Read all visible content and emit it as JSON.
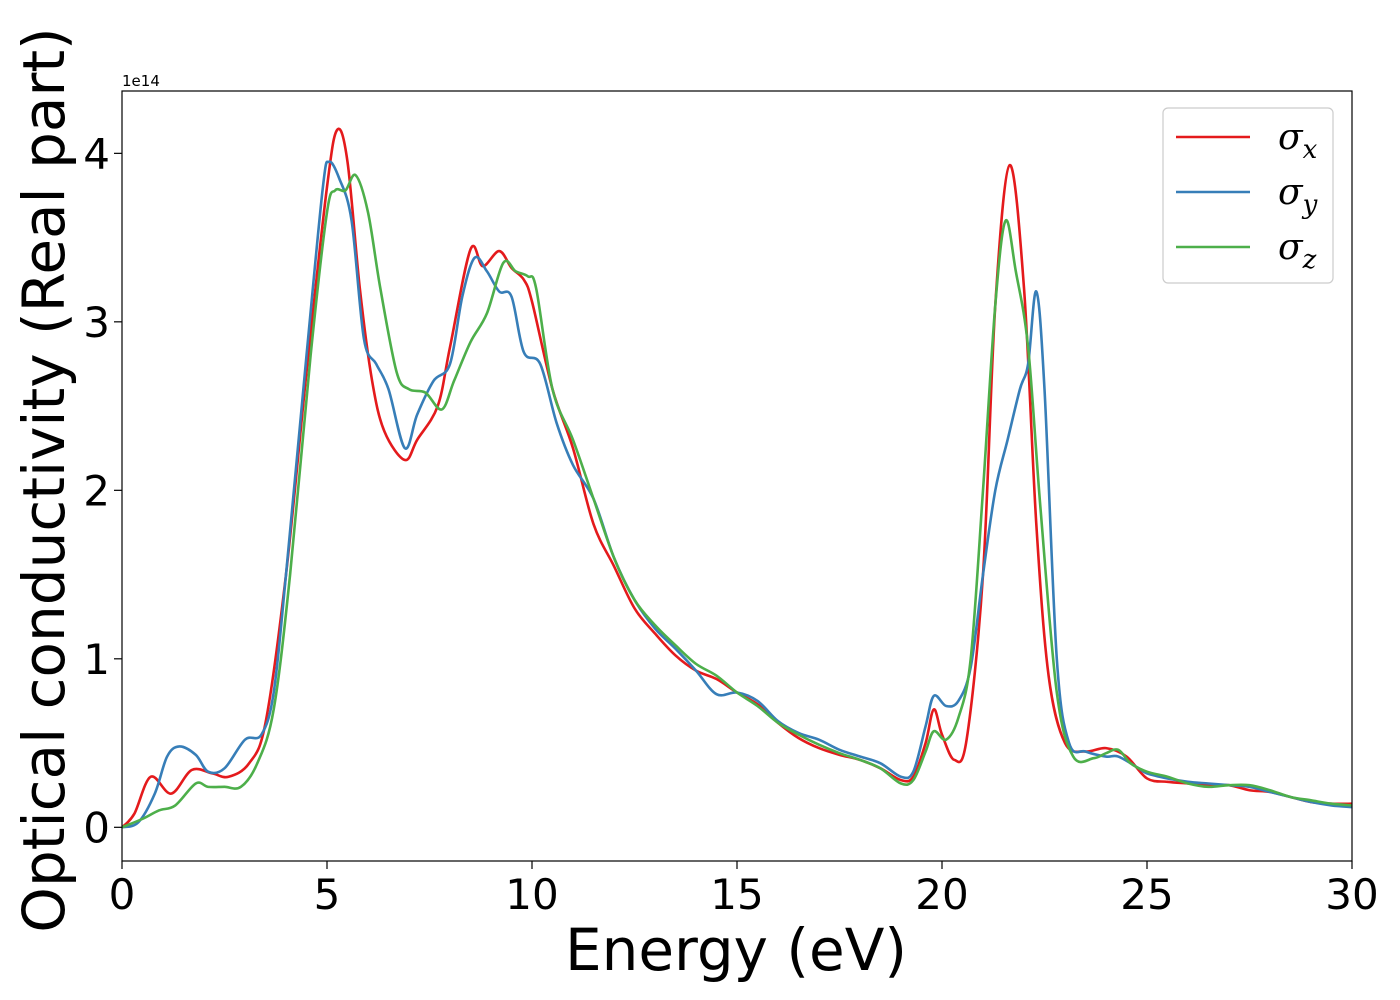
{
  "chart_data": {
    "type": "line",
    "xlabel": "Energy (eV)",
    "ylabel": "Optical conductivity (Real part)",
    "offset_text": "1e14",
    "xlim": [
      0,
      30
    ],
    "ylim": [
      -0.2,
      4.37
    ],
    "x_ticks": [
      0,
      5,
      10,
      15,
      20,
      25,
      30
    ],
    "x_tick_labels": [
      "0",
      "5",
      "10",
      "15",
      "20",
      "25",
      "30"
    ],
    "y_ticks": [
      0,
      1,
      2,
      3,
      4
    ],
    "y_tick_labels": [
      "0",
      "1",
      "2",
      "3",
      "4"
    ],
    "grid": false,
    "legend_position": "top-right",
    "series": [
      {
        "name": "σx",
        "symbol": "σ",
        "subscript": "x",
        "color": "#e41a1c",
        "points": [
          [
            0,
            0
          ],
          [
            0.3,
            0.08
          ],
          [
            0.7,
            0.3
          ],
          [
            1.2,
            0.2
          ],
          [
            1.7,
            0.34
          ],
          [
            2.2,
            0.32
          ],
          [
            2.6,
            0.3
          ],
          [
            3.1,
            0.38
          ],
          [
            3.5,
            0.62
          ],
          [
            4.0,
            1.5
          ],
          [
            4.5,
            2.7
          ],
          [
            5.0,
            3.8
          ],
          [
            5.25,
            4.14
          ],
          [
            5.5,
            3.95
          ],
          [
            5.8,
            3.2
          ],
          [
            6.1,
            2.65
          ],
          [
            6.4,
            2.35
          ],
          [
            6.9,
            2.18
          ],
          [
            7.2,
            2.3
          ],
          [
            7.7,
            2.5
          ],
          [
            8.0,
            2.85
          ],
          [
            8.5,
            3.43
          ],
          [
            8.8,
            3.33
          ],
          [
            9.2,
            3.42
          ],
          [
            9.5,
            3.32
          ],
          [
            9.8,
            3.25
          ],
          [
            10.0,
            3.12
          ],
          [
            10.5,
            2.6
          ],
          [
            11.0,
            2.25
          ],
          [
            11.5,
            1.8
          ],
          [
            12.0,
            1.55
          ],
          [
            12.5,
            1.3
          ],
          [
            13.0,
            1.15
          ],
          [
            13.5,
            1.02
          ],
          [
            14.0,
            0.93
          ],
          [
            14.5,
            0.88
          ],
          [
            15.0,
            0.8
          ],
          [
            15.5,
            0.73
          ],
          [
            16.0,
            0.62
          ],
          [
            16.5,
            0.53
          ],
          [
            17.0,
            0.47
          ],
          [
            17.5,
            0.43
          ],
          [
            18.0,
            0.4
          ],
          [
            18.5,
            0.35
          ],
          [
            19.0,
            0.28
          ],
          [
            19.3,
            0.3
          ],
          [
            19.6,
            0.5
          ],
          [
            19.8,
            0.7
          ],
          [
            20.0,
            0.55
          ],
          [
            20.3,
            0.4
          ],
          [
            20.6,
            0.52
          ],
          [
            21.0,
            1.5
          ],
          [
            21.3,
            3.1
          ],
          [
            21.65,
            3.93
          ],
          [
            22.0,
            3.2
          ],
          [
            22.3,
            1.8
          ],
          [
            22.6,
            0.9
          ],
          [
            23.0,
            0.5
          ],
          [
            23.5,
            0.45
          ],
          [
            24.0,
            0.47
          ],
          [
            24.5,
            0.42
          ],
          [
            25.0,
            0.29
          ],
          [
            25.5,
            0.27
          ],
          [
            26.0,
            0.26
          ],
          [
            26.5,
            0.25
          ],
          [
            27.0,
            0.25
          ],
          [
            27.5,
            0.22
          ],
          [
            28.0,
            0.21
          ],
          [
            28.5,
            0.18
          ],
          [
            29.0,
            0.15
          ],
          [
            29.5,
            0.14
          ],
          [
            30.0,
            0.14
          ]
        ]
      },
      {
        "name": "σy",
        "symbol": "σ",
        "subscript": "y",
        "color": "#377eb8",
        "points": [
          [
            0,
            0
          ],
          [
            0.4,
            0.03
          ],
          [
            0.8,
            0.2
          ],
          [
            1.1,
            0.42
          ],
          [
            1.4,
            0.48
          ],
          [
            1.8,
            0.43
          ],
          [
            2.1,
            0.33
          ],
          [
            2.5,
            0.35
          ],
          [
            3.0,
            0.52
          ],
          [
            3.4,
            0.55
          ],
          [
            3.7,
            0.8
          ],
          [
            4.0,
            1.5
          ],
          [
            4.5,
            2.8
          ],
          [
            4.9,
            3.8
          ],
          [
            5.05,
            3.95
          ],
          [
            5.3,
            3.85
          ],
          [
            5.6,
            3.6
          ],
          [
            5.9,
            2.9
          ],
          [
            6.2,
            2.75
          ],
          [
            6.5,
            2.6
          ],
          [
            6.9,
            2.25
          ],
          [
            7.2,
            2.45
          ],
          [
            7.6,
            2.65
          ],
          [
            8.0,
            2.75
          ],
          [
            8.3,
            3.15
          ],
          [
            8.6,
            3.38
          ],
          [
            8.9,
            3.3
          ],
          [
            9.2,
            3.18
          ],
          [
            9.5,
            3.15
          ],
          [
            9.8,
            2.82
          ],
          [
            10.2,
            2.75
          ],
          [
            10.6,
            2.4
          ],
          [
            11.0,
            2.15
          ],
          [
            11.5,
            1.95
          ],
          [
            12.0,
            1.6
          ],
          [
            12.5,
            1.35
          ],
          [
            13.0,
            1.18
          ],
          [
            13.5,
            1.06
          ],
          [
            14.0,
            0.93
          ],
          [
            14.5,
            0.79
          ],
          [
            15.0,
            0.8
          ],
          [
            15.5,
            0.75
          ],
          [
            16.0,
            0.63
          ],
          [
            16.5,
            0.56
          ],
          [
            17.0,
            0.52
          ],
          [
            17.5,
            0.46
          ],
          [
            18.0,
            0.42
          ],
          [
            18.5,
            0.38
          ],
          [
            19.0,
            0.3
          ],
          [
            19.3,
            0.33
          ],
          [
            19.6,
            0.6
          ],
          [
            19.8,
            0.78
          ],
          [
            20.1,
            0.72
          ],
          [
            20.4,
            0.75
          ],
          [
            20.7,
            0.95
          ],
          [
            21.0,
            1.5
          ],
          [
            21.3,
            2.0
          ],
          [
            21.6,
            2.3
          ],
          [
            21.9,
            2.6
          ],
          [
            22.1,
            2.75
          ],
          [
            22.3,
            3.18
          ],
          [
            22.5,
            2.6
          ],
          [
            22.8,
            1.0
          ],
          [
            23.1,
            0.5
          ],
          [
            23.5,
            0.45
          ],
          [
            24.0,
            0.42
          ],
          [
            24.3,
            0.42
          ],
          [
            24.8,
            0.35
          ],
          [
            25.0,
            0.32
          ],
          [
            25.5,
            0.29
          ],
          [
            26.0,
            0.27
          ],
          [
            26.5,
            0.26
          ],
          [
            27.0,
            0.25
          ],
          [
            27.5,
            0.24
          ],
          [
            28.0,
            0.21
          ],
          [
            28.5,
            0.18
          ],
          [
            29.0,
            0.15
          ],
          [
            29.5,
            0.13
          ],
          [
            30.0,
            0.12
          ]
        ]
      },
      {
        "name": "σz",
        "symbol": "σ",
        "subscript": "z",
        "color": "#4daf4a",
        "points": [
          [
            0,
            0
          ],
          [
            0.5,
            0.05
          ],
          [
            0.9,
            0.1
          ],
          [
            1.3,
            0.13
          ],
          [
            1.8,
            0.26
          ],
          [
            2.1,
            0.24
          ],
          [
            2.5,
            0.24
          ],
          [
            2.9,
            0.24
          ],
          [
            3.3,
            0.38
          ],
          [
            3.7,
            0.7
          ],
          [
            4.1,
            1.5
          ],
          [
            4.6,
            2.8
          ],
          [
            5.0,
            3.65
          ],
          [
            5.2,
            3.78
          ],
          [
            5.45,
            3.78
          ],
          [
            5.7,
            3.87
          ],
          [
            6.0,
            3.65
          ],
          [
            6.3,
            3.2
          ],
          [
            6.7,
            2.7
          ],
          [
            7.0,
            2.6
          ],
          [
            7.4,
            2.58
          ],
          [
            7.8,
            2.48
          ],
          [
            8.1,
            2.65
          ],
          [
            8.5,
            2.88
          ],
          [
            8.9,
            3.05
          ],
          [
            9.3,
            3.35
          ],
          [
            9.6,
            3.3
          ],
          [
            9.9,
            3.27
          ],
          [
            10.1,
            3.2
          ],
          [
            10.5,
            2.6
          ],
          [
            11.0,
            2.3
          ],
          [
            11.5,
            1.95
          ],
          [
            12.0,
            1.6
          ],
          [
            12.5,
            1.35
          ],
          [
            13.0,
            1.2
          ],
          [
            13.5,
            1.08
          ],
          [
            14.0,
            0.97
          ],
          [
            14.5,
            0.9
          ],
          [
            15.0,
            0.8
          ],
          [
            15.5,
            0.72
          ],
          [
            16.0,
            0.62
          ],
          [
            16.5,
            0.55
          ],
          [
            17.0,
            0.49
          ],
          [
            17.5,
            0.44
          ],
          [
            18.0,
            0.4
          ],
          [
            18.5,
            0.35
          ],
          [
            19.0,
            0.26
          ],
          [
            19.3,
            0.28
          ],
          [
            19.6,
            0.45
          ],
          [
            19.8,
            0.57
          ],
          [
            20.1,
            0.52
          ],
          [
            20.4,
            0.65
          ],
          [
            20.7,
            1.0
          ],
          [
            21.0,
            2.0
          ],
          [
            21.3,
            3.1
          ],
          [
            21.55,
            3.6
          ],
          [
            21.8,
            3.3
          ],
          [
            22.1,
            2.85
          ],
          [
            22.4,
            1.9
          ],
          [
            22.8,
            0.8
          ],
          [
            23.2,
            0.42
          ],
          [
            23.7,
            0.41
          ],
          [
            24.0,
            0.44
          ],
          [
            24.3,
            0.46
          ],
          [
            24.6,
            0.38
          ],
          [
            25.0,
            0.33
          ],
          [
            25.5,
            0.3
          ],
          [
            26.0,
            0.26
          ],
          [
            26.5,
            0.24
          ],
          [
            27.0,
            0.25
          ],
          [
            27.5,
            0.25
          ],
          [
            28.0,
            0.22
          ],
          [
            28.5,
            0.18
          ],
          [
            29.0,
            0.16
          ],
          [
            29.5,
            0.14
          ],
          [
            30.0,
            0.13
          ]
        ]
      }
    ]
  }
}
